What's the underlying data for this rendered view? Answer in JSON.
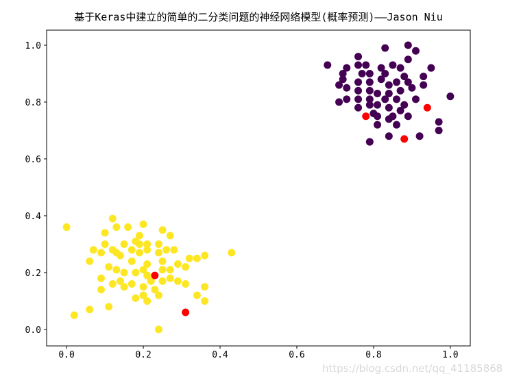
{
  "chart_data": {
    "type": "scatter",
    "title": "基于Keras中建立的简单的二分类问题的神经网络模型(概率预测)——Jason Niu",
    "xlabel": "",
    "ylabel": "",
    "xlim": [
      -0.052,
      1.052
    ],
    "ylim": [
      -0.058,
      1.053
    ],
    "xticks": [
      "0.0",
      "0.2",
      "0.4",
      "0.6",
      "0.8",
      "1.0"
    ],
    "yticks": [
      "0.0",
      "0.2",
      "0.4",
      "0.6",
      "0.8",
      "1.0"
    ],
    "grid": false,
    "legend": "none",
    "series": [
      {
        "color": "#440154",
        "points": [
          [
            0.83,
            0.99
          ],
          [
            0.89,
            1.0
          ],
          [
            0.91,
            0.98
          ],
          [
            0.76,
            0.96
          ],
          [
            0.89,
            0.95
          ],
          [
            0.68,
            0.93
          ],
          [
            0.73,
            0.92
          ],
          [
            0.76,
            0.93
          ],
          [
            0.78,
            0.93
          ],
          [
            0.82,
            0.92
          ],
          [
            0.85,
            0.93
          ],
          [
            0.87,
            0.92
          ],
          [
            0.95,
            0.92
          ],
          [
            0.72,
            0.9
          ],
          [
            0.77,
            0.9
          ],
          [
            0.79,
            0.9
          ],
          [
            0.83,
            0.9
          ],
          [
            0.88,
            0.89
          ],
          [
            0.93,
            0.89
          ],
          [
            0.72,
            0.88
          ],
          [
            0.71,
            0.86
          ],
          [
            0.73,
            0.85
          ],
          [
            0.76,
            0.87
          ],
          [
            0.79,
            0.87
          ],
          [
            0.82,
            0.88
          ],
          [
            0.84,
            0.86
          ],
          [
            0.86,
            0.87
          ],
          [
            0.89,
            0.87
          ],
          [
            0.9,
            0.85
          ],
          [
            0.93,
            0.86
          ],
          [
            0.76,
            0.84
          ],
          [
            0.79,
            0.84
          ],
          [
            0.81,
            0.83
          ],
          [
            0.84,
            0.83
          ],
          [
            0.87,
            0.84
          ],
          [
            0.71,
            0.8
          ],
          [
            0.73,
            0.81
          ],
          [
            0.76,
            0.81
          ],
          [
            0.79,
            0.81
          ],
          [
            0.83,
            0.81
          ],
          [
            0.86,
            0.81
          ],
          [
            0.91,
            0.81
          ],
          [
            1.0,
            0.82
          ],
          [
            0.76,
            0.78
          ],
          [
            0.79,
            0.79
          ],
          [
            0.81,
            0.79
          ],
          [
            0.84,
            0.78
          ],
          [
            0.88,
            0.79
          ],
          [
            0.8,
            0.76
          ],
          [
            0.81,
            0.75
          ],
          [
            0.85,
            0.75
          ],
          [
            0.87,
            0.77
          ],
          [
            0.89,
            0.75
          ],
          [
            0.84,
            0.74
          ],
          [
            0.81,
            0.72
          ],
          [
            0.86,
            0.72
          ],
          [
            0.97,
            0.73
          ],
          [
            0.84,
            0.68
          ],
          [
            0.92,
            0.68
          ],
          [
            0.97,
            0.7
          ],
          [
            0.79,
            0.66
          ]
        ]
      },
      {
        "color": "#fde725",
        "points": [
          [
            0.12,
            0.39
          ],
          [
            0.0,
            0.36
          ],
          [
            0.13,
            0.36
          ],
          [
            0.16,
            0.36
          ],
          [
            0.2,
            0.37
          ],
          [
            0.1,
            0.34
          ],
          [
            0.25,
            0.35
          ],
          [
            0.27,
            0.33
          ],
          [
            0.19,
            0.33
          ],
          [
            0.1,
            0.3
          ],
          [
            0.15,
            0.3
          ],
          [
            0.18,
            0.31
          ],
          [
            0.19,
            0.3
          ],
          [
            0.21,
            0.3
          ],
          [
            0.24,
            0.3
          ],
          [
            0.07,
            0.28
          ],
          [
            0.09,
            0.27
          ],
          [
            0.12,
            0.28
          ],
          [
            0.13,
            0.27
          ],
          [
            0.14,
            0.26
          ],
          [
            0.17,
            0.28
          ],
          [
            0.19,
            0.27
          ],
          [
            0.21,
            0.28
          ],
          [
            0.24,
            0.27
          ],
          [
            0.26,
            0.28
          ],
          [
            0.28,
            0.28
          ],
          [
            0.43,
            0.27
          ],
          [
            0.06,
            0.24
          ],
          [
            0.17,
            0.24
          ],
          [
            0.21,
            0.23
          ],
          [
            0.25,
            0.24
          ],
          [
            0.29,
            0.23
          ],
          [
            0.31,
            0.22
          ],
          [
            0.32,
            0.25
          ],
          [
            0.34,
            0.25
          ],
          [
            0.36,
            0.26
          ],
          [
            0.11,
            0.22
          ],
          [
            0.13,
            0.21
          ],
          [
            0.15,
            0.2
          ],
          [
            0.18,
            0.2
          ],
          [
            0.2,
            0.21
          ],
          [
            0.21,
            0.19
          ],
          [
            0.25,
            0.21
          ],
          [
            0.27,
            0.21
          ],
          [
            0.09,
            0.18
          ],
          [
            0.12,
            0.16
          ],
          [
            0.14,
            0.17
          ],
          [
            0.17,
            0.16
          ],
          [
            0.2,
            0.15
          ],
          [
            0.22,
            0.17
          ],
          [
            0.25,
            0.17
          ],
          [
            0.27,
            0.18
          ],
          [
            0.29,
            0.17
          ],
          [
            0.31,
            0.16
          ],
          [
            0.09,
            0.14
          ],
          [
            0.15,
            0.15
          ],
          [
            0.23,
            0.14
          ],
          [
            0.24,
            0.12
          ],
          [
            0.18,
            0.11
          ],
          [
            0.2,
            0.12
          ],
          [
            0.21,
            0.1
          ],
          [
            0.34,
            0.12
          ],
          [
            0.36,
            0.1
          ],
          [
            0.36,
            0.15
          ],
          [
            0.11,
            0.08
          ],
          [
            0.06,
            0.07
          ],
          [
            0.02,
            0.05
          ],
          [
            0.24,
            0.0
          ]
        ]
      },
      {
        "color": "#ff0000",
        "points": [
          [
            0.78,
            0.75
          ],
          [
            0.94,
            0.78
          ],
          [
            0.88,
            0.67
          ],
          [
            0.23,
            0.19
          ],
          [
            0.31,
            0.06
          ]
        ]
      }
    ]
  },
  "watermark": "https://blog.csdn.net/qq_41185868"
}
